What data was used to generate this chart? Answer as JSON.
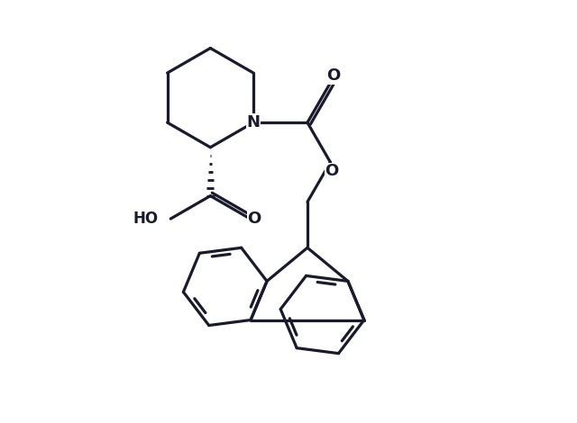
{
  "bg": "#ffffff",
  "lc": "#1a1a2e",
  "lw": 2.3,
  "figsize": [
    6.4,
    4.7
  ],
  "dpi": 100,
  "xlim": [
    0,
    10
  ],
  "ylim": [
    0,
    7.8
  ]
}
